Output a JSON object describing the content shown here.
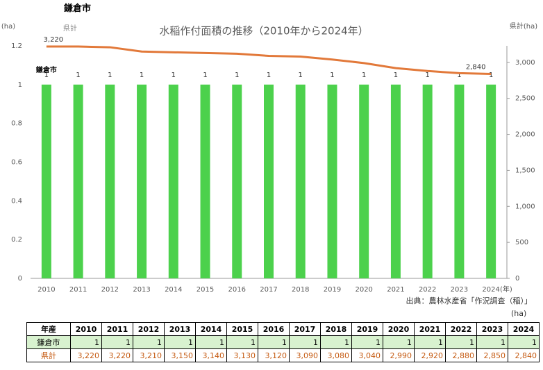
{
  "header": "鎌倉市",
  "chart_data": {
    "type": "bar",
    "title": "水稲作付面積の推移（2010年から2024年）",
    "y_label": "(ha)",
    "y2_label": "県計(ha)",
    "x_unit": "(年)",
    "source": "出典：農林水産省「作況調査（稲）」",
    "categories": [
      "2010",
      "2011",
      "2012",
      "2013",
      "2014",
      "2015",
      "2016",
      "2017",
      "2018",
      "2019",
      "2020",
      "2021",
      "2022",
      "2023",
      "2024"
    ],
    "ylim": [
      0,
      1.2
    ],
    "yticks": [
      0,
      0.2,
      0.4,
      0.6,
      0.8,
      1,
      1.2
    ],
    "y2lim": [
      0,
      3230
    ],
    "y2ticks": [
      0,
      500,
      {
        "value": 1000,
        "label": "1,000"
      },
      {
        "value": 1500,
        "label": "1,500"
      },
      {
        "value": 2000,
        "label": "2,000"
      },
      {
        "value": 2500,
        "label": "2,500"
      },
      {
        "value": 3000,
        "label": "3,000"
      }
    ],
    "grid": false,
    "series": [
      {
        "name": "鎌倉市",
        "type": "bar",
        "color": "#4cd14c",
        "values": [
          1,
          1,
          1,
          1,
          1,
          1,
          1,
          1,
          1,
          1,
          1,
          1,
          1,
          1,
          1
        ]
      },
      {
        "name": "県計",
        "type": "line",
        "axis": "y2",
        "color": "#e2793a",
        "values": [
          3220,
          3220,
          3210,
          3150,
          3140,
          3130,
          3120,
          3090,
          3080,
          3040,
          2990,
          2920,
          2880,
          2850,
          2840
        ],
        "value_labels": [
          "3,220",
          null,
          null,
          null,
          null,
          null,
          null,
          null,
          null,
          null,
          null,
          null,
          null,
          null,
          "2,840"
        ]
      }
    ]
  },
  "table": {
    "unit": "(ha)",
    "header": [
      "年産",
      "2010",
      "2011",
      "2012",
      "2013",
      "2014",
      "2015",
      "2016",
      "2017",
      "2018",
      "2019",
      "2020",
      "2021",
      "2022",
      "2023",
      "2024"
    ],
    "rows": [
      [
        "鎌倉市",
        "1",
        "1",
        "1",
        "1",
        "1",
        "1",
        "1",
        "1",
        "1",
        "1",
        "1",
        "1",
        "1",
        "1",
        "1"
      ],
      [
        "県計",
        "3,220",
        "3,220",
        "3,210",
        "3,150",
        "3,140",
        "3,130",
        "3,120",
        "3,090",
        "3,080",
        "3,040",
        "2,990",
        "2,920",
        "2,880",
        "2,850",
        "2,840"
      ]
    ]
  }
}
